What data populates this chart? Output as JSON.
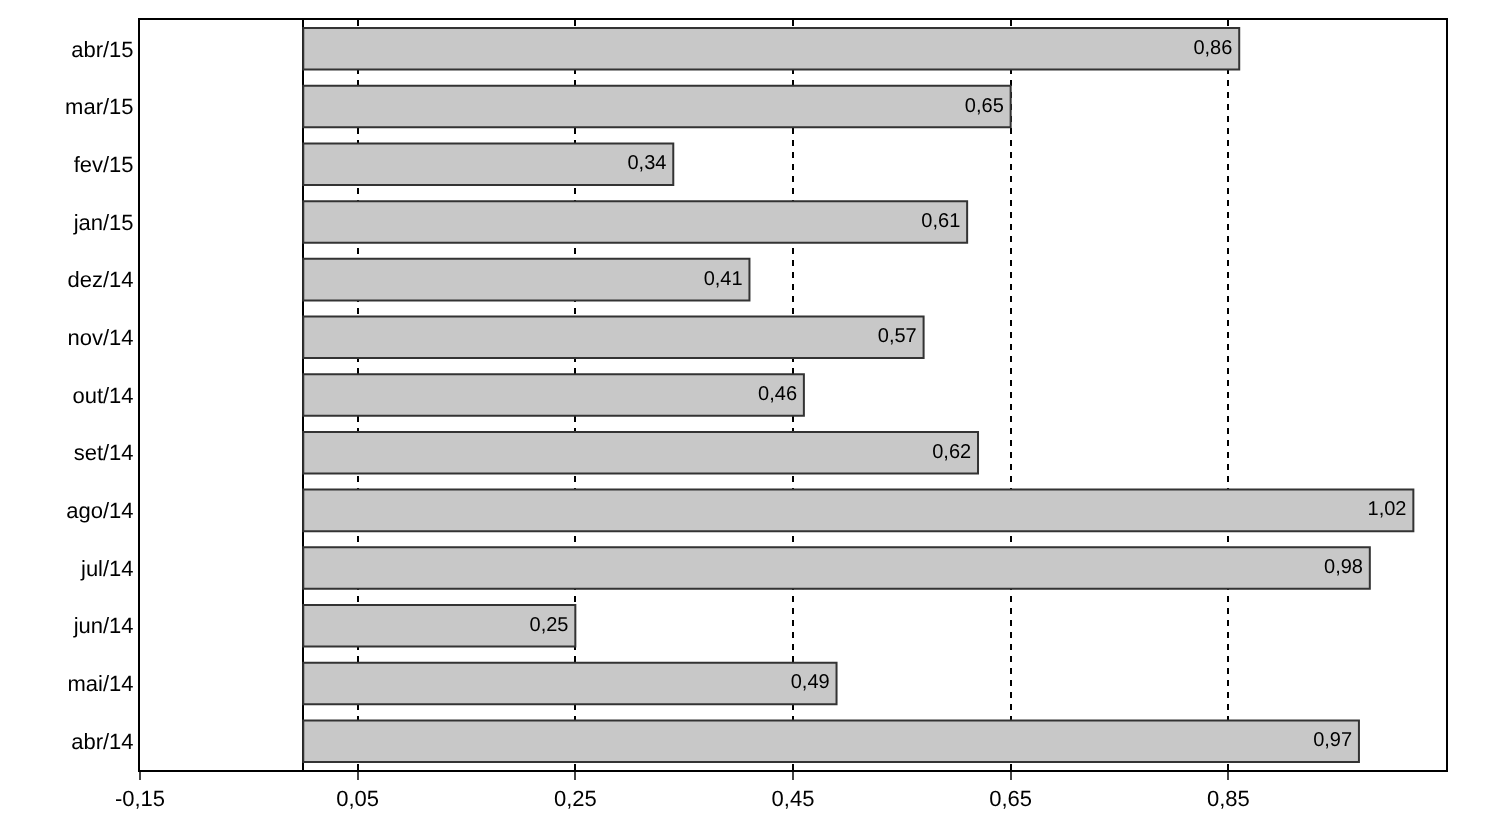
{
  "chart_data": {
    "type": "bar",
    "orientation": "horizontal",
    "categories": [
      "abr/15",
      "mar/15",
      "fev/15",
      "jan/15",
      "dez/14",
      "nov/14",
      "out/14",
      "set/14",
      "ago/14",
      "jul/14",
      "jun/14",
      "mai/14",
      "abr/14"
    ],
    "values": [
      0.86,
      0.65,
      0.34,
      0.61,
      0.41,
      0.57,
      0.46,
      0.62,
      1.02,
      0.98,
      0.25,
      0.49,
      0.97
    ],
    "value_labels": [
      "0,86",
      "0,65",
      "0,34",
      "0,61",
      "0,41",
      "0,57",
      "0,46",
      "0,62",
      "1,02",
      "0,98",
      "0,25",
      "0,49",
      "0,97"
    ],
    "color": "#c8c8c8",
    "xlim": [
      -0.15,
      1.05
    ],
    "xticks": [
      {
        "value": -0.15,
        "label": "-0,15"
      },
      {
        "value": 0.05,
        "label": "0,05"
      },
      {
        "value": 0.25,
        "label": "0,25"
      },
      {
        "value": 0.45,
        "label": "0,45"
      },
      {
        "value": 0.65,
        "label": "0,65"
      },
      {
        "value": 0.85,
        "label": "0,85"
      }
    ],
    "grid": "x"
  }
}
